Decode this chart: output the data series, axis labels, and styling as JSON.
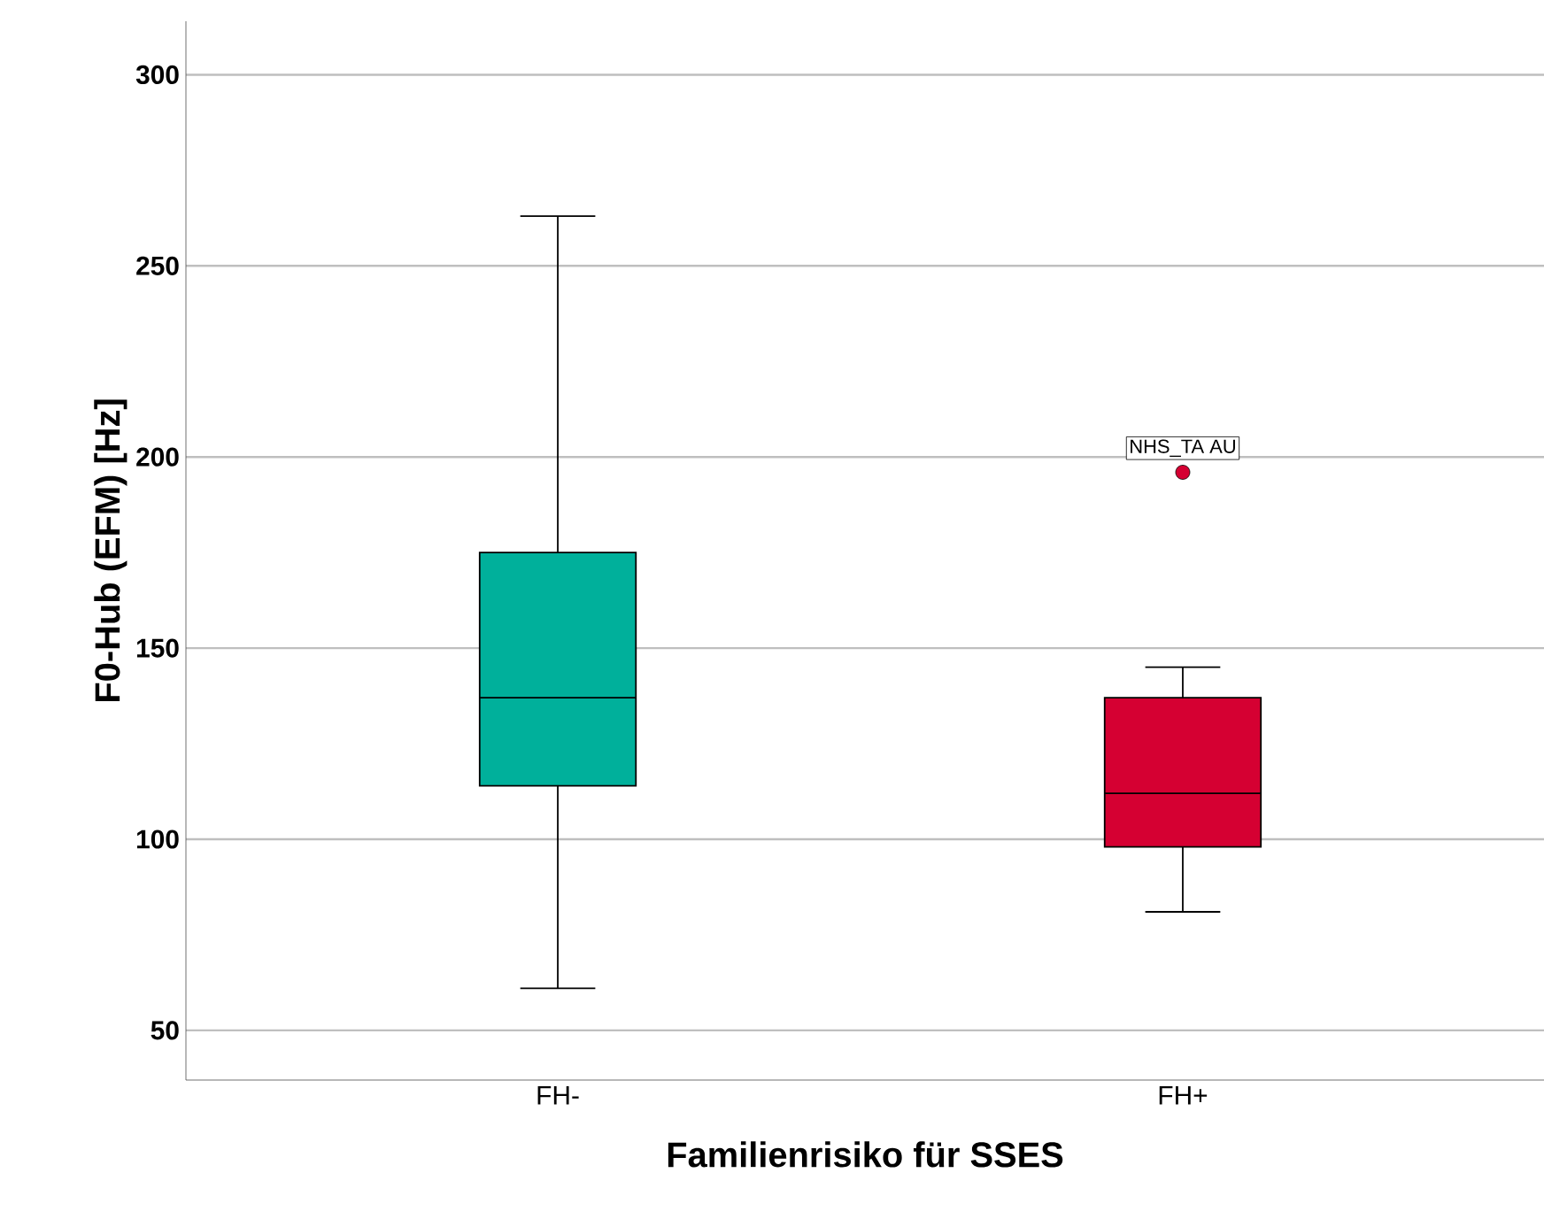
{
  "chart_data": {
    "type": "box",
    "xlabel": "Familienrisiko für SSES",
    "ylabel": "F0-Hub (EFM) [Hz]",
    "categories": [
      "FH-",
      "FH+"
    ],
    "colors": [
      "#00b09b",
      "#d50032"
    ],
    "boxes": [
      {
        "low": 61,
        "q1": 114,
        "median": 137,
        "q3": 175,
        "high": 263
      },
      {
        "low": 81,
        "q1": 98,
        "median": 112,
        "q3": 137,
        "high": 145,
        "outliers": [
          196
        ]
      }
    ],
    "ylim": [
      37,
      314
    ],
    "yticks": [
      50,
      100,
      150,
      200,
      250,
      300
    ],
    "grid": "y",
    "annotations": [
      "NHS_TA AU"
    ]
  }
}
